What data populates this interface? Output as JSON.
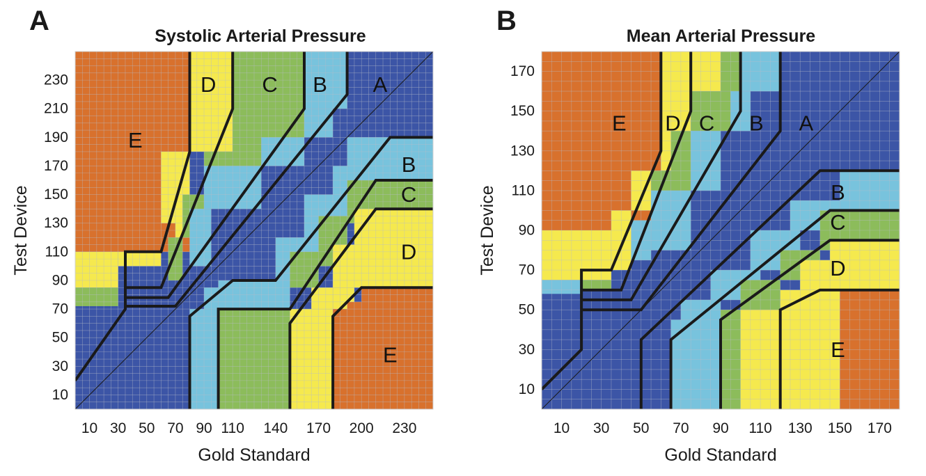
{
  "colors": {
    "A": "#3c55a6",
    "B": "#78c3dd",
    "C": "#8cbc5b",
    "D": "#f5e94e",
    "E": "#d8712d",
    "grid": "#b8bcc8",
    "boundary": "#1a1a1a"
  },
  "chart_data": [
    {
      "type": "heatmap",
      "panel_label": "A",
      "title": "Systolic Arterial Pressure",
      "xlabel": "Gold Standard",
      "ylabel": "Test Device",
      "xlim": [
        0,
        250
      ],
      "ylim": [
        0,
        250
      ],
      "x_ticks": [
        10,
        30,
        50,
        70,
        90,
        110,
        140,
        170,
        200,
        230
      ],
      "x_tick_labels": [
        "10",
        "30",
        "50",
        "70",
        "90",
        "110",
        "140",
        "170",
        "200",
        "230"
      ],
      "y_ticks": [
        10,
        30,
        50,
        70,
        90,
        110,
        130,
        150,
        170,
        190,
        210,
        230
      ],
      "y_tick_labels": [
        "10",
        "30",
        "50",
        "70",
        "90",
        "110",
        "130",
        "150",
        "170",
        "190",
        "210",
        "230"
      ],
      "region_labels": [
        {
          "text": "E",
          "x": 42,
          "y": 188
        },
        {
          "text": "D",
          "x": 93,
          "y": 227
        },
        {
          "text": "C",
          "x": 136,
          "y": 227
        },
        {
          "text": "B",
          "x": 171,
          "y": 227
        },
        {
          "text": "A",
          "x": 213,
          "y": 227
        },
        {
          "text": "B",
          "x": 233,
          "y": 171
        },
        {
          "text": "C",
          "x": 233,
          "y": 150
        },
        {
          "text": "D",
          "x": 233,
          "y": 110
        },
        {
          "text": "E",
          "x": 220,
          "y": 38
        }
      ],
      "cells": [
        {
          "x0": 0,
          "x1": 250,
          "y0": 0,
          "y1": 250,
          "zone": "A"
        },
        {
          "x0": 0,
          "x1": 80,
          "y0": 110,
          "y1": 250,
          "zone": "E"
        },
        {
          "x0": 30,
          "x1": 60,
          "y0": 100,
          "y1": 110,
          "zone": "D"
        },
        {
          "x0": 0,
          "x1": 30,
          "y0": 85,
          "y1": 110,
          "zone": "D"
        },
        {
          "x0": 0,
          "x1": 30,
          "y0": 72,
          "y1": 85,
          "zone": "C"
        },
        {
          "x0": 60,
          "x1": 70,
          "y0": 130,
          "y1": 160,
          "zone": "D"
        },
        {
          "x0": 60,
          "x1": 70,
          "y0": 160,
          "y1": 180,
          "zone": "D"
        },
        {
          "x0": 70,
          "x1": 80,
          "y0": 120,
          "y1": 180,
          "zone": "D"
        },
        {
          "x0": 65,
          "x1": 75,
          "y0": 90,
          "y1": 120,
          "zone": "C"
        },
        {
          "x0": 80,
          "x1": 110,
          "y0": 180,
          "y1": 250,
          "zone": "D"
        },
        {
          "x0": 110,
          "x1": 160,
          "y0": 190,
          "y1": 250,
          "zone": "C"
        },
        {
          "x0": 90,
          "x1": 110,
          "y0": 150,
          "y1": 180,
          "zone": "C"
        },
        {
          "x0": 75,
          "x1": 90,
          "y0": 120,
          "y1": 150,
          "zone": "C"
        },
        {
          "x0": 110,
          "x1": 130,
          "y0": 170,
          "y1": 190,
          "zone": "C"
        },
        {
          "x0": 130,
          "x1": 150,
          "y0": 185,
          "y1": 200,
          "zone": "C"
        },
        {
          "x0": 160,
          "x1": 190,
          "y0": 210,
          "y1": 250,
          "zone": "B"
        },
        {
          "x0": 90,
          "x1": 130,
          "y0": 140,
          "y1": 170,
          "zone": "B"
        },
        {
          "x0": 130,
          "x1": 160,
          "y0": 170,
          "y1": 190,
          "zone": "B"
        },
        {
          "x0": 80,
          "x1": 95,
          "y0": 100,
          "y1": 140,
          "zone": "B"
        },
        {
          "x0": 160,
          "x1": 180,
          "y0": 190,
          "y1": 210,
          "zone": "B"
        },
        {
          "x0": 80,
          "x1": 110,
          "y0": 0,
          "y1": 70,
          "zone": "B"
        },
        {
          "x0": 90,
          "x1": 100,
          "y0": 70,
          "y1": 85,
          "zone": "B"
        },
        {
          "x0": 100,
          "x1": 150,
          "y0": 70,
          "y1": 90,
          "zone": "B"
        },
        {
          "x0": 140,
          "x1": 170,
          "y0": 90,
          "y1": 120,
          "zone": "B"
        },
        {
          "x0": 160,
          "x1": 190,
          "y0": 120,
          "y1": 150,
          "zone": "B"
        },
        {
          "x0": 190,
          "x1": 250,
          "y0": 160,
          "y1": 190,
          "zone": "B"
        },
        {
          "x0": 180,
          "x1": 210,
          "y0": 145,
          "y1": 170,
          "zone": "B"
        },
        {
          "x0": 100,
          "x1": 150,
          "y0": 0,
          "y1": 70,
          "zone": "C"
        },
        {
          "x0": 150,
          "x1": 170,
          "y0": 85,
          "y1": 110,
          "zone": "C"
        },
        {
          "x0": 170,
          "x1": 190,
          "y0": 100,
          "y1": 135,
          "zone": "C"
        },
        {
          "x0": 190,
          "x1": 210,
          "y0": 130,
          "y1": 160,
          "zone": "C"
        },
        {
          "x0": 210,
          "x1": 250,
          "y0": 140,
          "y1": 160,
          "zone": "C"
        },
        {
          "x0": 150,
          "x1": 180,
          "y0": 0,
          "y1": 70,
          "zone": "D"
        },
        {
          "x0": 165,
          "x1": 180,
          "y0": 70,
          "y1": 85,
          "zone": "D"
        },
        {
          "x0": 180,
          "x1": 200,
          "y0": 85,
          "y1": 115,
          "zone": "D"
        },
        {
          "x0": 195,
          "x1": 250,
          "y0": 85,
          "y1": 140,
          "zone": "D"
        },
        {
          "x0": 180,
          "x1": 195,
          "y0": 70,
          "y1": 85,
          "zone": "D"
        },
        {
          "x0": 180,
          "x1": 250,
          "y0": 0,
          "y1": 70,
          "zone": "E"
        },
        {
          "x0": 200,
          "x1": 250,
          "y0": 70,
          "y1": 85,
          "zone": "E"
        },
        {
          "x0": 190,
          "x1": 200,
          "y0": 65,
          "y1": 75,
          "zone": "E"
        }
      ],
      "boundaries": [
        [
          [
            0,
            20
          ],
          [
            35,
            70
          ],
          [
            35,
            110
          ],
          [
            60,
            110
          ],
          [
            80,
            180
          ],
          [
            80,
            250
          ]
        ],
        [
          [
            35,
            85
          ],
          [
            60,
            85
          ],
          [
            110,
            210
          ],
          [
            110,
            250
          ]
        ],
        [
          [
            35,
            78
          ],
          [
            65,
            78
          ],
          [
            160,
            210
          ],
          [
            160,
            250
          ]
        ],
        [
          [
            35,
            72
          ],
          [
            70,
            72
          ],
          [
            190,
            220
          ],
          [
            190,
            250
          ]
        ],
        [
          [
            80,
            0
          ],
          [
            80,
            65
          ],
          [
            110,
            90
          ],
          [
            140,
            90
          ],
          [
            220,
            190
          ],
          [
            250,
            190
          ]
        ],
        [
          [
            100,
            0
          ],
          [
            100,
            70
          ],
          [
            150,
            70
          ],
          [
            210,
            160
          ],
          [
            250,
            160
          ]
        ],
        [
          [
            150,
            0
          ],
          [
            150,
            60
          ],
          [
            210,
            140
          ],
          [
            250,
            140
          ]
        ],
        [
          [
            180,
            0
          ],
          [
            180,
            65
          ],
          [
            200,
            85
          ],
          [
            250,
            85
          ]
        ]
      ],
      "diagonal": [
        [
          0,
          0
        ],
        [
          250,
          250
        ]
      ]
    },
    {
      "type": "heatmap",
      "panel_label": "B",
      "title": "Mean Arterial Pressure",
      "xlabel": "Gold Standard",
      "ylabel": "Test Device",
      "xlim": [
        0,
        180
      ],
      "ylim": [
        0,
        180
      ],
      "x_ticks": [
        10,
        30,
        50,
        70,
        90,
        110,
        130,
        150,
        170
      ],
      "x_tick_labels": [
        "10",
        "30",
        "50",
        "70",
        "90",
        "110",
        "130",
        "150",
        "170"
      ],
      "y_ticks": [
        10,
        30,
        50,
        70,
        90,
        110,
        130,
        150,
        170
      ],
      "y_tick_labels": [
        "10",
        "30",
        "50",
        "70",
        "90",
        "110",
        "130",
        "150",
        "170"
      ],
      "region_labels": [
        {
          "text": "E",
          "x": 39,
          "y": 144
        },
        {
          "text": "D",
          "x": 66,
          "y": 144
        },
        {
          "text": "C",
          "x": 83,
          "y": 144
        },
        {
          "text": "B",
          "x": 108,
          "y": 144
        },
        {
          "text": "A",
          "x": 133,
          "y": 144
        },
        {
          "text": "B",
          "x": 149,
          "y": 109
        },
        {
          "text": "C",
          "x": 149,
          "y": 94
        },
        {
          "text": "D",
          "x": 149,
          "y": 71
        },
        {
          "text": "E",
          "x": 149,
          "y": 30
        }
      ],
      "cells": [
        {
          "x0": 0,
          "x1": 180,
          "y0": 0,
          "y1": 180,
          "zone": "A"
        },
        {
          "x0": 0,
          "x1": 60,
          "y0": 90,
          "y1": 180,
          "zone": "E"
        },
        {
          "x0": 0,
          "x1": 35,
          "y0": 65,
          "y1": 90,
          "zone": "D"
        },
        {
          "x0": 35,
          "x1": 45,
          "y0": 70,
          "y1": 100,
          "zone": "D"
        },
        {
          "x0": 45,
          "x1": 55,
          "y0": 100,
          "y1": 120,
          "zone": "D"
        },
        {
          "x0": 0,
          "x1": 20,
          "y0": 58,
          "y1": 65,
          "zone": "B"
        },
        {
          "x0": 20,
          "x1": 35,
          "y0": 60,
          "y1": 65,
          "zone": "C"
        },
        {
          "x0": 60,
          "x1": 75,
          "y0": 120,
          "y1": 180,
          "zone": "D"
        },
        {
          "x0": 75,
          "x1": 90,
          "y0": 160,
          "y1": 180,
          "zone": "D"
        },
        {
          "x0": 55,
          "x1": 65,
          "y0": 95,
          "y1": 120,
          "zone": "C"
        },
        {
          "x0": 65,
          "x1": 75,
          "y0": 110,
          "y1": 140,
          "zone": "C"
        },
        {
          "x0": 75,
          "x1": 95,
          "y0": 140,
          "y1": 160,
          "zone": "C"
        },
        {
          "x0": 90,
          "x1": 100,
          "y0": 160,
          "y1": 180,
          "zone": "C"
        },
        {
          "x0": 100,
          "x1": 120,
          "y0": 160,
          "y1": 180,
          "zone": "B"
        },
        {
          "x0": 95,
          "x1": 105,
          "y0": 140,
          "y1": 160,
          "zone": "B"
        },
        {
          "x0": 75,
          "x1": 90,
          "y0": 110,
          "y1": 140,
          "zone": "B"
        },
        {
          "x0": 55,
          "x1": 75,
          "y0": 80,
          "y1": 110,
          "zone": "B"
        },
        {
          "x0": 45,
          "x1": 55,
          "y0": 75,
          "y1": 95,
          "zone": "B"
        },
        {
          "x0": 50,
          "x1": 65,
          "y0": 0,
          "y1": 35,
          "zone": "A"
        },
        {
          "x0": 65,
          "x1": 90,
          "y0": 0,
          "y1": 45,
          "zone": "B"
        },
        {
          "x0": 70,
          "x1": 90,
          "y0": 45,
          "y1": 55,
          "zone": "B"
        },
        {
          "x0": 85,
          "x1": 110,
          "y0": 55,
          "y1": 70,
          "zone": "B"
        },
        {
          "x0": 105,
          "x1": 130,
          "y0": 70,
          "y1": 90,
          "zone": "B"
        },
        {
          "x0": 125,
          "x1": 150,
          "y0": 90,
          "y1": 105,
          "zone": "B"
        },
        {
          "x0": 150,
          "x1": 180,
          "y0": 100,
          "y1": 120,
          "zone": "B"
        },
        {
          "x0": 90,
          "x1": 100,
          "y0": 0,
          "y1": 50,
          "zone": "C"
        },
        {
          "x0": 100,
          "x1": 120,
          "y0": 50,
          "y1": 65,
          "zone": "C"
        },
        {
          "x0": 120,
          "x1": 140,
          "y0": 65,
          "y1": 80,
          "zone": "C"
        },
        {
          "x0": 140,
          "x1": 180,
          "y0": 80,
          "y1": 100,
          "zone": "C"
        },
        {
          "x0": 100,
          "x1": 120,
          "y0": 0,
          "y1": 50,
          "zone": "D"
        },
        {
          "x0": 120,
          "x1": 150,
          "y0": 0,
          "y1": 60,
          "zone": "D"
        },
        {
          "x0": 130,
          "x1": 145,
          "y0": 60,
          "y1": 75,
          "zone": "D"
        },
        {
          "x0": 145,
          "x1": 180,
          "y0": 60,
          "y1": 85,
          "zone": "D"
        },
        {
          "x0": 150,
          "x1": 180,
          "y0": 0,
          "y1": 60,
          "zone": "E"
        },
        {
          "x0": 0,
          "x1": 60,
          "y0": 0,
          "y1": 58,
          "zone": "A"
        }
      ],
      "boundaries": [
        [
          [
            0,
            10
          ],
          [
            20,
            30
          ],
          [
            20,
            70
          ],
          [
            35,
            70
          ],
          [
            60,
            130
          ],
          [
            60,
            180
          ]
        ],
        [
          [
            20,
            60
          ],
          [
            40,
            60
          ],
          [
            75,
            150
          ],
          [
            75,
            180
          ]
        ],
        [
          [
            20,
            55
          ],
          [
            45,
            55
          ],
          [
            100,
            150
          ],
          [
            100,
            180
          ]
        ],
        [
          [
            20,
            50
          ],
          [
            50,
            50
          ],
          [
            120,
            140
          ],
          [
            120,
            180
          ]
        ],
        [
          [
            50,
            0
          ],
          [
            50,
            35
          ],
          [
            140,
            120
          ],
          [
            180,
            120
          ]
        ],
        [
          [
            65,
            0
          ],
          [
            65,
            35
          ],
          [
            145,
            100
          ],
          [
            180,
            100
          ]
        ],
        [
          [
            90,
            0
          ],
          [
            90,
            45
          ],
          [
            145,
            85
          ],
          [
            180,
            85
          ]
        ],
        [
          [
            120,
            0
          ],
          [
            120,
            50
          ],
          [
            140,
            60
          ],
          [
            180,
            60
          ]
        ]
      ],
      "diagonal": [
        [
          0,
          0
        ],
        [
          180,
          180
        ]
      ]
    }
  ]
}
